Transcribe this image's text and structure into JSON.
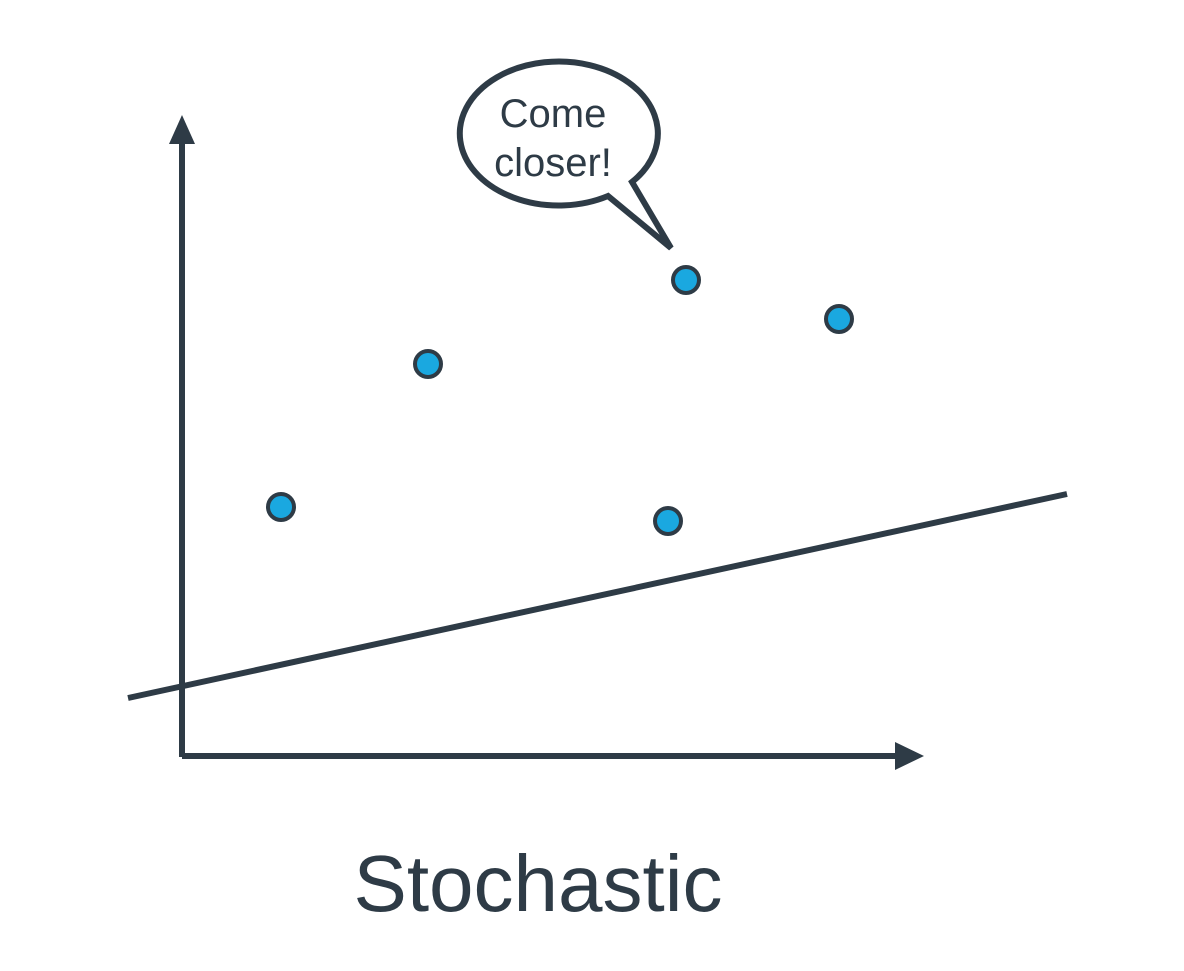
{
  "speech_bubble": {
    "line1": "Come",
    "line2": "closer!"
  },
  "caption": "Stochastic",
  "colors": {
    "ink": "#2e3b46",
    "point_fill": "#1aa8e0",
    "background": "#ffffff"
  }
}
